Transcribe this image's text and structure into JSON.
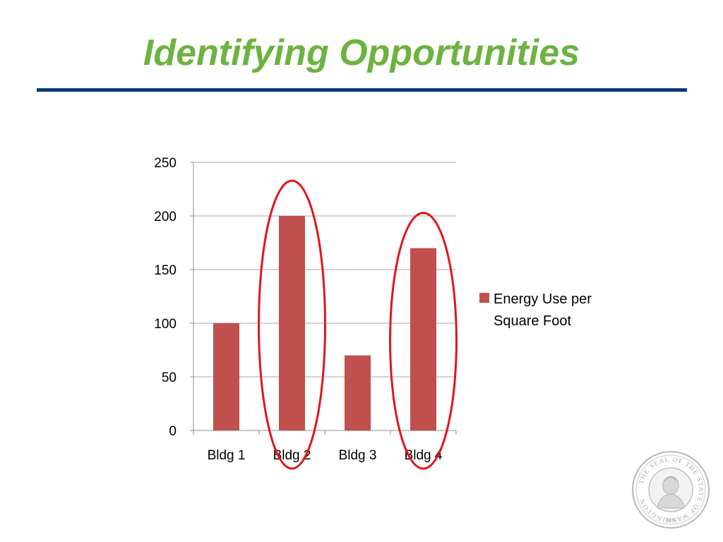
{
  "slide": {
    "title": "Identifying Opportunities"
  },
  "seal": {
    "top_text": "THE SEAL OF THE STATE OF WASHINGTON",
    "year": "1889"
  },
  "colors": {
    "title": "#6cb33f",
    "rule": "#0a3a7a",
    "bar": "#c0504d",
    "highlight_circle": "#e3141b",
    "grid": "#a6a6a6"
  },
  "chart_data": {
    "type": "bar",
    "categories": [
      "Bldg 1",
      "Bldg 2",
      "Bldg 3",
      "Bldg 4"
    ],
    "series": [
      {
        "name": "Energy Use per Square Foot",
        "values": [
          100,
          200,
          70,
          170
        ]
      }
    ],
    "yticks": [
      0,
      50,
      100,
      150,
      200,
      250
    ],
    "ylim": [
      0,
      250
    ],
    "grid": true,
    "legend": "right",
    "highlighted_categories": [
      "Bldg 2",
      "Bldg 4"
    ]
  }
}
